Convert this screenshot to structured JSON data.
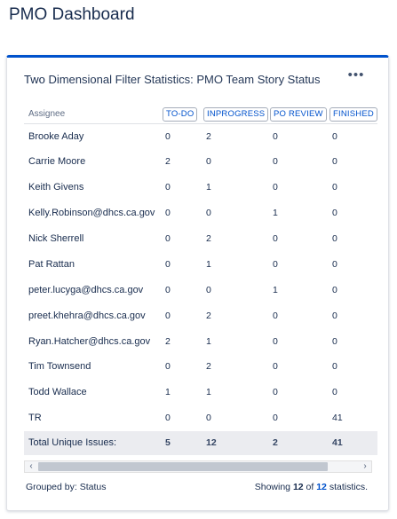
{
  "page_title": "PMO Dashboard",
  "gadget": {
    "title_strong": "Two",
    "title_rest": " Dimensional Filter Statistics: PMO Team Story Status",
    "menu_glyph": "•••",
    "header_assignee": "Assignee",
    "statuses": [
      "TO-DO",
      "INPROGRESS",
      "PO REVIEW",
      "FINISHED"
    ],
    "rows": [
      {
        "name": "Brooke Aday",
        "values": [
          "0",
          "2",
          "0",
          "0"
        ]
      },
      {
        "name": "Carrie Moore",
        "values": [
          "2",
          "0",
          "0",
          "0"
        ]
      },
      {
        "name": "Keith Givens",
        "values": [
          "0",
          "1",
          "0",
          "0"
        ]
      },
      {
        "name": "Kelly.Robinson@dhcs.ca.gov",
        "values": [
          "0",
          "0",
          "1",
          "0"
        ]
      },
      {
        "name": "Nick Sherrell",
        "values": [
          "0",
          "2",
          "0",
          "0"
        ]
      },
      {
        "name": "Pat Rattan",
        "values": [
          "0",
          "1",
          "0",
          "0"
        ]
      },
      {
        "name": "peter.lucyga@dhcs.ca.gov",
        "values": [
          "0",
          "0",
          "1",
          "0"
        ]
      },
      {
        "name": "preet.khehra@dhcs.ca.gov",
        "values": [
          "0",
          "2",
          "0",
          "0"
        ]
      },
      {
        "name": "Ryan.Hatcher@dhcs.ca.gov",
        "values": [
          "2",
          "1",
          "0",
          "0"
        ]
      },
      {
        "name": "Tim Townsend",
        "values": [
          "0",
          "2",
          "0",
          "0"
        ]
      },
      {
        "name": "Todd Wallace",
        "values": [
          "1",
          "1",
          "0",
          "0"
        ]
      },
      {
        "name": "TR",
        "values": [
          "0",
          "0",
          "0",
          "41"
        ]
      }
    ],
    "total_label": "Total Unique Issues:",
    "totals": [
      "5",
      "12",
      "2",
      "41"
    ],
    "grouped_by_label": "Grouped by: Status",
    "showing_prefix": "Showing ",
    "showing_count": "12",
    "showing_of": " of ",
    "showing_total": "12",
    "showing_suffix": " statistics.",
    "scroll_left_glyph": "‹",
    "scroll_right_glyph": "›"
  }
}
